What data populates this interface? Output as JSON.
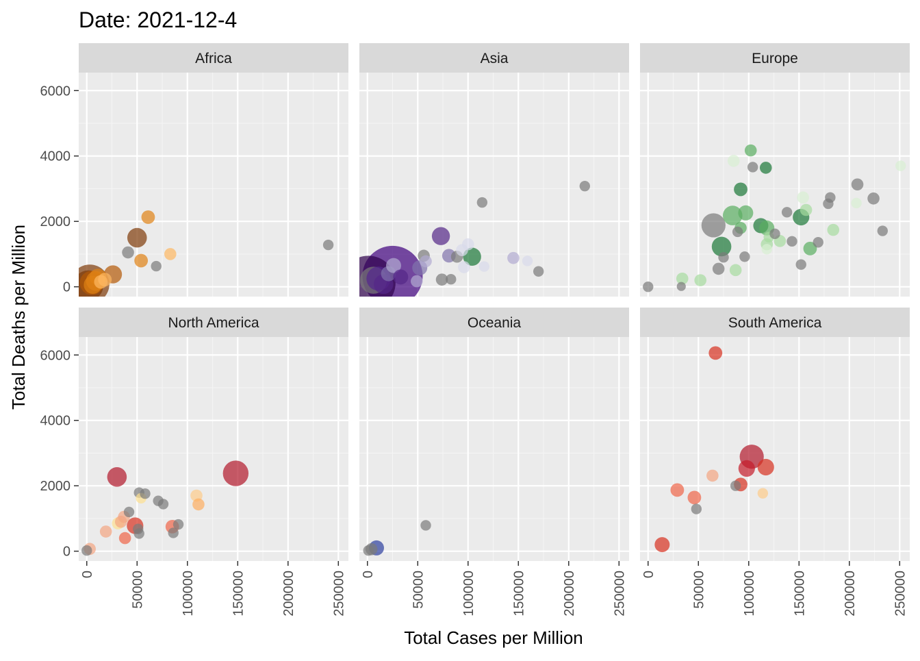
{
  "chart_data": {
    "type": "scatter",
    "title": "Date: 2021-12-4",
    "xlabel": "Total Cases per Million",
    "ylabel": "Total Deaths per Million",
    "xlim": [
      -8000,
      260000
    ],
    "ylim": [
      -300,
      6550
    ],
    "x_ticks": [
      0,
      50000,
      100000,
      150000,
      200000,
      250000
    ],
    "x_tick_labels": [
      "0",
      "50000",
      "100000",
      "150000",
      "200000",
      "250000"
    ],
    "y_ticks": [
      0,
      2000,
      4000,
      6000
    ],
    "y_tick_labels": [
      "0",
      "2000",
      "4000",
      "6000"
    ],
    "grid": true,
    "legend": "none",
    "panels": [
      {
        "name": "Africa",
        "points": [
          {
            "x": 1500,
            "y": 40,
            "s": 2.0,
            "c": "#7f3b08"
          },
          {
            "x": 3000,
            "y": 80,
            "s": 2.6,
            "c": "#7f3b08"
          },
          {
            "x": 5000,
            "y": 120,
            "s": 1.6,
            "c": "#b35806"
          },
          {
            "x": 6000,
            "y": 60,
            "s": 1.2,
            "c": "#e08214"
          },
          {
            "x": 9000,
            "y": 180,
            "s": 1.3,
            "c": "#e08214"
          },
          {
            "x": 11000,
            "y": 300,
            "s": 1.1,
            "c": "#e08214"
          },
          {
            "x": 14000,
            "y": 150,
            "s": 0.9,
            "c": "#fdb863"
          },
          {
            "x": 18000,
            "y": 220,
            "s": 0.9,
            "c": "#fdb863"
          },
          {
            "x": 26000,
            "y": 380,
            "s": 1.2,
            "c": "#b35806"
          },
          {
            "x": 41000,
            "y": 1050,
            "s": 0.8,
            "c": "#7a7a7a"
          },
          {
            "x": 50000,
            "y": 1500,
            "s": 1.3,
            "c": "#7f3b08"
          },
          {
            "x": 54000,
            "y": 800,
            "s": 0.9,
            "c": "#e08214"
          },
          {
            "x": 61000,
            "y": 2130,
            "s": 0.9,
            "c": "#e08214"
          },
          {
            "x": 69000,
            "y": 630,
            "s": 0.7,
            "c": "#7a7a7a"
          },
          {
            "x": 83000,
            "y": 1000,
            "s": 0.8,
            "c": "#fdb863"
          },
          {
            "x": 240000,
            "y": 1280,
            "s": 0.7,
            "c": "#7a7a7a"
          }
        ]
      },
      {
        "name": "Asia",
        "points": [
          {
            "x": 1000,
            "y": 120,
            "s": 3.6,
            "c": "#2d004b"
          },
          {
            "x": 25000,
            "y": 330,
            "s": 4.0,
            "c": "#3f007d"
          },
          {
            "x": 6000,
            "y": 200,
            "s": 1.8,
            "c": "#7a7a7a"
          },
          {
            "x": 11000,
            "y": 250,
            "s": 1.6,
            "c": "#54278f"
          },
          {
            "x": 16000,
            "y": 80,
            "s": 1.3,
            "c": "#542788"
          },
          {
            "x": 21000,
            "y": 400,
            "s": 1.0,
            "c": "#8073ac"
          },
          {
            "x": 26000,
            "y": 650,
            "s": 1.0,
            "c": "#b2abd2"
          },
          {
            "x": 33000,
            "y": 300,
            "s": 1.0,
            "c": "#542788"
          },
          {
            "x": 49000,
            "y": 170,
            "s": 0.8,
            "c": "#b2abd2"
          },
          {
            "x": 52000,
            "y": 580,
            "s": 1.0,
            "c": "#8073ac"
          },
          {
            "x": 56000,
            "y": 950,
            "s": 0.8,
            "c": "#7a7a7a"
          },
          {
            "x": 58000,
            "y": 780,
            "s": 0.8,
            "c": "#b2abd2"
          },
          {
            "x": 73000,
            "y": 1550,
            "s": 1.2,
            "c": "#542788"
          },
          {
            "x": 74000,
            "y": 220,
            "s": 0.8,
            "c": "#7a7a7a"
          },
          {
            "x": 81000,
            "y": 950,
            "s": 0.9,
            "c": "#8073ac"
          },
          {
            "x": 83000,
            "y": 230,
            "s": 0.7,
            "c": "#7a7a7a"
          },
          {
            "x": 89000,
            "y": 920,
            "s": 0.8,
            "c": "#7a7a7a"
          },
          {
            "x": 94000,
            "y": 1120,
            "s": 0.8,
            "c": "#d8daeb"
          },
          {
            "x": 96000,
            "y": 600,
            "s": 0.8,
            "c": "#d8daeb"
          },
          {
            "x": 100000,
            "y": 1300,
            "s": 0.8,
            "c": "#d8daeb"
          },
          {
            "x": 104000,
            "y": 920,
            "s": 1.2,
            "c": "#1b7837"
          },
          {
            "x": 114000,
            "y": 2580,
            "s": 0.7,
            "c": "#7a7a7a"
          },
          {
            "x": 116000,
            "y": 620,
            "s": 0.7,
            "c": "#d8daeb"
          },
          {
            "x": 145000,
            "y": 880,
            "s": 0.8,
            "c": "#b2abd2"
          },
          {
            "x": 159000,
            "y": 790,
            "s": 0.7,
            "c": "#d8daeb"
          },
          {
            "x": 170000,
            "y": 470,
            "s": 0.7,
            "c": "#7a7a7a"
          },
          {
            "x": 216000,
            "y": 3080,
            "s": 0.7,
            "c": "#7a7a7a"
          }
        ]
      },
      {
        "name": "Europe",
        "points": [
          {
            "x": 0,
            "y": 0,
            "s": 0.7,
            "c": "#7a7a7a"
          },
          {
            "x": 33000,
            "y": 10,
            "s": 0.6,
            "c": "#7a7a7a"
          },
          {
            "x": 34000,
            "y": 250,
            "s": 0.8,
            "c": "#a6dba0"
          },
          {
            "x": 52000,
            "y": 200,
            "s": 0.8,
            "c": "#a6dba0"
          },
          {
            "x": 65000,
            "y": 1880,
            "s": 1.6,
            "c": "#7a7a7a"
          },
          {
            "x": 70000,
            "y": 550,
            "s": 0.8,
            "c": "#7a7a7a"
          },
          {
            "x": 73000,
            "y": 1230,
            "s": 1.3,
            "c": "#1b7837"
          },
          {
            "x": 75000,
            "y": 900,
            "s": 0.7,
            "c": "#7a7a7a"
          },
          {
            "x": 84000,
            "y": 2180,
            "s": 1.3,
            "c": "#5aae61"
          },
          {
            "x": 85000,
            "y": 3850,
            "s": 0.8,
            "c": "#d9f0d3"
          },
          {
            "x": 87000,
            "y": 510,
            "s": 0.8,
            "c": "#a6dba0"
          },
          {
            "x": 89000,
            "y": 1680,
            "s": 0.7,
            "c": "#7a7a7a"
          },
          {
            "x": 92000,
            "y": 2980,
            "s": 0.9,
            "c": "#1b7837"
          },
          {
            "x": 92000,
            "y": 1800,
            "s": 0.8,
            "c": "#5aae61"
          },
          {
            "x": 96000,
            "y": 920,
            "s": 0.7,
            "c": "#7a7a7a"
          },
          {
            "x": 97000,
            "y": 2260,
            "s": 1.0,
            "c": "#5aae61"
          },
          {
            "x": 102000,
            "y": 4170,
            "s": 0.8,
            "c": "#5aae61"
          },
          {
            "x": 104000,
            "y": 3660,
            "s": 0.7,
            "c": "#7a7a7a"
          },
          {
            "x": 112000,
            "y": 1870,
            "s": 1.0,
            "c": "#1b7837"
          },
          {
            "x": 118000,
            "y": 1800,
            "s": 1.0,
            "c": "#5aae61"
          },
          {
            "x": 117000,
            "y": 3640,
            "s": 0.8,
            "c": "#1b7837"
          },
          {
            "x": 118000,
            "y": 1300,
            "s": 0.8,
            "c": "#a6dba0"
          },
          {
            "x": 118000,
            "y": 1150,
            "s": 0.7,
            "c": "#d9f0d3"
          },
          {
            "x": 120000,
            "y": 1520,
            "s": 0.7,
            "c": "#a6dba0"
          },
          {
            "x": 126000,
            "y": 1620,
            "s": 0.7,
            "c": "#7a7a7a"
          },
          {
            "x": 131000,
            "y": 1400,
            "s": 0.8,
            "c": "#a6dba0"
          },
          {
            "x": 138000,
            "y": 2280,
            "s": 0.7,
            "c": "#7a7a7a"
          },
          {
            "x": 143000,
            "y": 1390,
            "s": 0.7,
            "c": "#7a7a7a"
          },
          {
            "x": 152000,
            "y": 2130,
            "s": 1.1,
            "c": "#1b7837"
          },
          {
            "x": 152000,
            "y": 680,
            "s": 0.7,
            "c": "#7a7a7a"
          },
          {
            "x": 154000,
            "y": 2730,
            "s": 0.8,
            "c": "#d9f0d3"
          },
          {
            "x": 157000,
            "y": 2350,
            "s": 0.8,
            "c": "#a6dba0"
          },
          {
            "x": 161000,
            "y": 1170,
            "s": 0.9,
            "c": "#5aae61"
          },
          {
            "x": 169000,
            "y": 1360,
            "s": 0.7,
            "c": "#7a7a7a"
          },
          {
            "x": 179000,
            "y": 2540,
            "s": 0.7,
            "c": "#7a7a7a"
          },
          {
            "x": 181000,
            "y": 2730,
            "s": 0.7,
            "c": "#7a7a7a"
          },
          {
            "x": 184000,
            "y": 1740,
            "s": 0.8,
            "c": "#a6dba0"
          },
          {
            "x": 207000,
            "y": 2560,
            "s": 0.7,
            "c": "#d9f0d3"
          },
          {
            "x": 208000,
            "y": 3130,
            "s": 0.8,
            "c": "#7a7a7a"
          },
          {
            "x": 224000,
            "y": 2700,
            "s": 0.8,
            "c": "#7a7a7a"
          },
          {
            "x": 233000,
            "y": 1710,
            "s": 0.7,
            "c": "#7a7a7a"
          },
          {
            "x": 251000,
            "y": 3700,
            "s": 0.7,
            "c": "#d9f0d3"
          }
        ]
      },
      {
        "name": "North America",
        "points": [
          {
            "x": 0,
            "y": 20,
            "s": 0.7,
            "c": "#7a7a7a"
          },
          {
            "x": 3000,
            "y": 70,
            "s": 0.8,
            "c": "#f4a582"
          },
          {
            "x": 19000,
            "y": 600,
            "s": 0.8,
            "c": "#f4a582"
          },
          {
            "x": 30000,
            "y": 2270,
            "s": 1.3,
            "c": "#b2182b"
          },
          {
            "x": 31000,
            "y": 850,
            "s": 0.8,
            "c": "#fee090"
          },
          {
            "x": 34000,
            "y": 900,
            "s": 0.8,
            "c": "#f4a582"
          },
          {
            "x": 37000,
            "y": 1050,
            "s": 0.8,
            "c": "#f4a582"
          },
          {
            "x": 38000,
            "y": 400,
            "s": 0.8,
            "c": "#ef6548"
          },
          {
            "x": 42000,
            "y": 1200,
            "s": 0.7,
            "c": "#7a7a7a"
          },
          {
            "x": 48000,
            "y": 780,
            "s": 1.1,
            "c": "#d7301f"
          },
          {
            "x": 51000,
            "y": 680,
            "s": 0.7,
            "c": "#7a7a7a"
          },
          {
            "x": 52000,
            "y": 540,
            "s": 0.7,
            "c": "#7a7a7a"
          },
          {
            "x": 52000,
            "y": 1790,
            "s": 0.7,
            "c": "#7a7a7a"
          },
          {
            "x": 54000,
            "y": 1620,
            "s": 0.7,
            "c": "#fee090"
          },
          {
            "x": 58000,
            "y": 1760,
            "s": 0.7,
            "c": "#7a7a7a"
          },
          {
            "x": 71000,
            "y": 1540,
            "s": 0.7,
            "c": "#7a7a7a"
          },
          {
            "x": 76000,
            "y": 1440,
            "s": 0.7,
            "c": "#7a7a7a"
          },
          {
            "x": 85000,
            "y": 750,
            "s": 0.9,
            "c": "#ef6548"
          },
          {
            "x": 86000,
            "y": 560,
            "s": 0.7,
            "c": "#7a7a7a"
          },
          {
            "x": 91000,
            "y": 820,
            "s": 0.7,
            "c": "#7a7a7a"
          },
          {
            "x": 109000,
            "y": 1700,
            "s": 0.8,
            "c": "#fdcc8a"
          },
          {
            "x": 111000,
            "y": 1430,
            "s": 0.8,
            "c": "#fdae61"
          },
          {
            "x": 148000,
            "y": 2380,
            "s": 1.7,
            "c": "#b2182b"
          }
        ]
      },
      {
        "name": "Oceania",
        "points": [
          {
            "x": 1000,
            "y": 20,
            "s": 0.7,
            "c": "#7a7a7a"
          },
          {
            "x": 4000,
            "y": 60,
            "s": 0.8,
            "c": "#7a7a7a"
          },
          {
            "x": 9000,
            "y": 100,
            "s": 1.0,
            "c": "#2c3e9e"
          },
          {
            "x": 58000,
            "y": 790,
            "s": 0.7,
            "c": "#7a7a7a"
          }
        ]
      },
      {
        "name": "South America",
        "points": [
          {
            "x": 14000,
            "y": 200,
            "s": 1.0,
            "c": "#d7301f"
          },
          {
            "x": 29000,
            "y": 1870,
            "s": 0.9,
            "c": "#ef6548"
          },
          {
            "x": 46000,
            "y": 1640,
            "s": 0.9,
            "c": "#ef6548"
          },
          {
            "x": 48000,
            "y": 1290,
            "s": 0.7,
            "c": "#7a7a7a"
          },
          {
            "x": 64000,
            "y": 2310,
            "s": 0.8,
            "c": "#f4a582"
          },
          {
            "x": 67000,
            "y": 6060,
            "s": 0.9,
            "c": "#d7301f"
          },
          {
            "x": 87000,
            "y": 2000,
            "s": 0.7,
            "c": "#7a7a7a"
          },
          {
            "x": 92000,
            "y": 2040,
            "s": 0.9,
            "c": "#d7301f"
          },
          {
            "x": 98000,
            "y": 2530,
            "s": 1.1,
            "c": "#c51b2a"
          },
          {
            "x": 103000,
            "y": 2890,
            "s": 1.6,
            "c": "#b2182b"
          },
          {
            "x": 114000,
            "y": 1770,
            "s": 0.7,
            "c": "#fdcc8a"
          },
          {
            "x": 117000,
            "y": 2570,
            "s": 1.1,
            "c": "#d7301f"
          }
        ]
      }
    ]
  }
}
